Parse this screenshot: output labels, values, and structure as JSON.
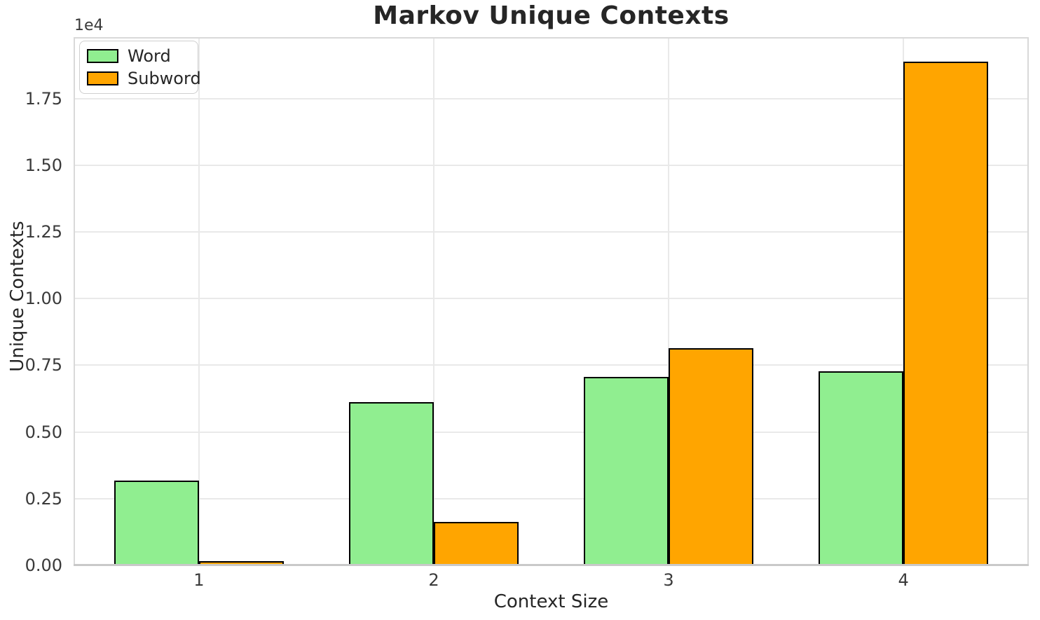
{
  "chart_data": {
    "type": "bar",
    "title": "Markov Unique Contexts",
    "xlabel": "Context Size",
    "ylabel": "Unique Contexts",
    "y_offset_text": "1e4",
    "categories": [
      1,
      2,
      3,
      4
    ],
    "xtick_labels": [
      "1",
      "2",
      "3",
      "4"
    ],
    "series": [
      {
        "name": "Word",
        "color": "#90EE90",
        "values": [
          3190,
          6120,
          7070,
          7280
        ]
      },
      {
        "name": "Subword",
        "color": "#FFA500",
        "values": [
          170,
          1620,
          8130,
          18870
        ]
      }
    ],
    "ylim": [
      0,
      19800
    ],
    "xlim": [
      0.466,
      4.534
    ],
    "bar_width_units": 0.36,
    "yticks": [
      0,
      2500,
      5000,
      7500,
      10000,
      12500,
      15000,
      17500
    ],
    "ytick_labels": [
      "0.00",
      "0.25",
      "0.50",
      "0.75",
      "1.00",
      "1.25",
      "1.50",
      "1.75"
    ],
    "grid": true,
    "legend_position": "upper left",
    "bar_edge_color": "#000000",
    "colors": {
      "word": "#90EE90",
      "subword": "#FFA500",
      "grid": "#e9e9e9",
      "spine": "#d9d9d9",
      "bottom_spine": "#c9c9c9",
      "text": "#262626"
    }
  }
}
